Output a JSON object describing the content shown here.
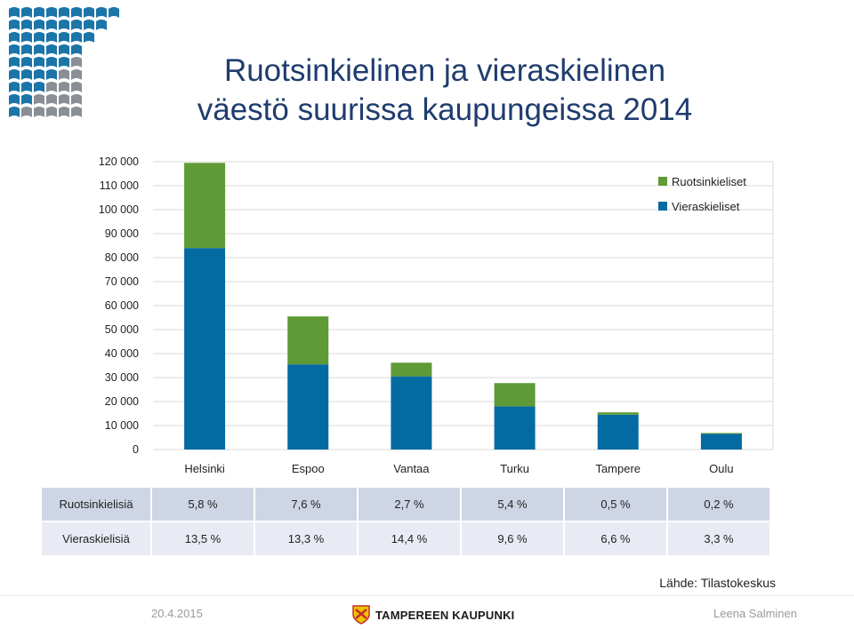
{
  "title_line1": "Ruotsinkielinen ja vieraskielinen",
  "title_line2": "väestö suurissa kaupungeissa 2014",
  "chart_data": {
    "type": "bar",
    "stacked": true,
    "categories": [
      "Helsinki",
      "Espoo",
      "Vantaa",
      "Turku",
      "Tampere",
      "Oulu"
    ],
    "series": [
      {
        "name": "Vieraskieliset",
        "color": "#046aa2",
        "values": [
          84000,
          35500,
          30500,
          18000,
          14500,
          6500
        ]
      },
      {
        "name": "Ruotsinkieliset",
        "color": "#5e9a35",
        "values": [
          35500,
          20000,
          5700,
          9700,
          1000,
          400
        ]
      }
    ],
    "ylim": [
      0,
      120000
    ],
    "yticks": [
      {
        "value": 0,
        "label": "0"
      },
      {
        "value": 10000,
        "label": "10 000"
      },
      {
        "value": 20000,
        "label": "20 000"
      },
      {
        "value": 30000,
        "label": "30 000"
      },
      {
        "value": 40000,
        "label": "40 000"
      },
      {
        "value": 50000,
        "label": "50 000"
      },
      {
        "value": 60000,
        "label": "60 000"
      },
      {
        "value": 70000,
        "label": "70 000"
      },
      {
        "value": 80000,
        "label": "80 000"
      },
      {
        "value": 90000,
        "label": "90 000"
      },
      {
        "value": 100000,
        "label": "100 000"
      },
      {
        "value": 110000,
        "label": "110 000"
      },
      {
        "value": 120000,
        "label": "120 000"
      }
    ],
    "legend": {
      "placement": "top-right",
      "entries": [
        "Ruotsinkieliset",
        "Vieraskieliset"
      ]
    },
    "grid": true
  },
  "table": {
    "rows": [
      {
        "label": "Ruotsinkielisiä",
        "values": [
          "5,8 %",
          "7,6 %",
          "2,7 %",
          "5,4 %",
          "0,5 %",
          "0,2 %"
        ]
      },
      {
        "label": "Vieraskielisiä",
        "values": [
          "13,5 %",
          "13,3 %",
          "14,4 %",
          "9,6 %",
          "6,6 %",
          "3,3 %"
        ]
      }
    ]
  },
  "source": "Lähde: Tilastokeskus",
  "footer": {
    "date": "20.4.2015",
    "brand": "TAMPEREEN KAUPUNKI",
    "author": "Leena Salminen"
  },
  "colors": {
    "title": "#1f3c6e",
    "logo_blue": "#1b75a8",
    "logo_grey": "#8a8f96"
  }
}
